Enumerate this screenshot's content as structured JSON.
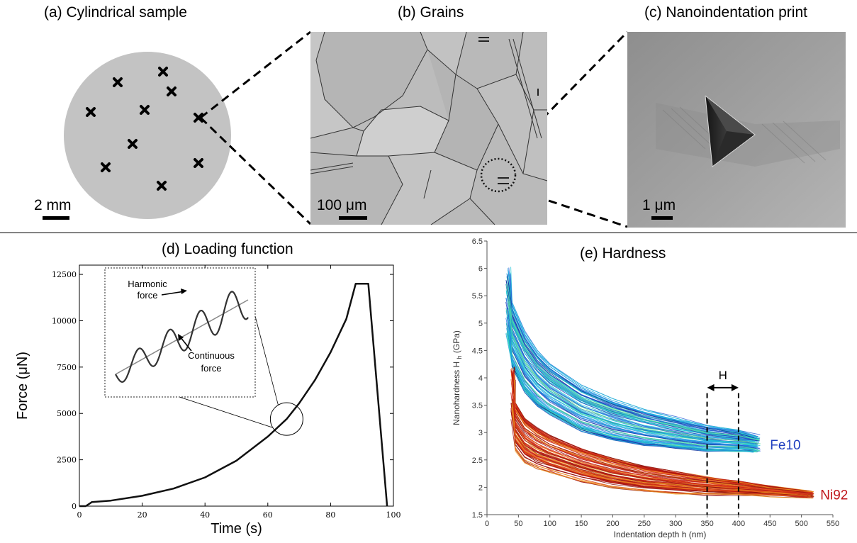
{
  "panels": {
    "a": {
      "title": "(a) Cylindrical sample",
      "scale": "2 mm"
    },
    "b": {
      "title": "(b) Grains",
      "scale": "100 μm"
    },
    "c": {
      "title": "(c) Nanoindentation print",
      "scale": "1 μm"
    },
    "d": {
      "title": "(d) Loading function"
    },
    "e": {
      "title": "(e) Hardness"
    }
  },
  "colors": {
    "sample": "#c3c3c3",
    "grains_bg": "#b9b9b9",
    "print_bg": "#9a9a9a",
    "fe10_label": "#1f3fbf",
    "ni92_label": "#c0161c"
  },
  "chart_data": [
    {
      "id": "loading-function",
      "type": "line",
      "title": "(d) Loading function",
      "xlabel": "Time (s)",
      "ylabel": "Force (μN)",
      "xlim": [
        0,
        100
      ],
      "ylim": [
        0,
        13000
      ],
      "x_ticks": [
        0,
        20,
        40,
        60,
        80,
        100
      ],
      "y_ticks": [
        0,
        2500,
        5000,
        7500,
        10000,
        12500
      ],
      "x": [
        0,
        2,
        4,
        10,
        20,
        30,
        40,
        50,
        60,
        66,
        70,
        75,
        80,
        85,
        88,
        92,
        98
      ],
      "y": [
        0,
        0,
        220,
        300,
        560,
        950,
        1550,
        2450,
        3750,
        4700,
        5550,
        6800,
        8300,
        10100,
        12000,
        12000,
        0
      ],
      "inset": {
        "annotations": [
          "Harmonic",
          "force",
          "Continuous",
          "force"
        ],
        "label_harmonic_1": "Harmonic",
        "label_harmonic_2": "force",
        "label_continuous_1": "Continuous",
        "label_continuous_2": "force",
        "oscillations": 4.3,
        "circle_center": [
          66,
          4700
        ]
      }
    },
    {
      "id": "hardness",
      "type": "line",
      "title": "(e) Hardness",
      "xlabel": "Indentation depth h (nm)",
      "ylabel": "Nanohardness H",
      "ylabel_sub": "h",
      "ylabel_unit": "(GPa)",
      "xlim": [
        0,
        550
      ],
      "ylim": [
        1.5,
        6.5
      ],
      "x_ticks": [
        0,
        50,
        100,
        150,
        200,
        250,
        300,
        350,
        400,
        450,
        500,
        550
      ],
      "y_ticks": [
        1.5,
        2,
        2.5,
        3,
        3.5,
        4,
        4.5,
        5,
        5.5,
        6,
        6.5
      ],
      "range_label": "H",
      "range": [
        350,
        400
      ],
      "series": [
        {
          "name": "Fe10",
          "x": [
            30,
            40,
            60,
            80,
            100,
            150,
            200,
            250,
            300,
            350,
            400,
            435
          ],
          "y": [
            5.4,
            4.8,
            4.3,
            4.0,
            3.8,
            3.45,
            3.25,
            3.1,
            3.0,
            2.9,
            2.85,
            2.8
          ]
        },
        {
          "name": "Ni92",
          "x": [
            38,
            45,
            60,
            80,
            100,
            150,
            200,
            250,
            300,
            350,
            400,
            450,
            520
          ],
          "y": [
            3.7,
            3.1,
            2.85,
            2.7,
            2.6,
            2.4,
            2.25,
            2.15,
            2.08,
            2.02,
            1.98,
            1.93,
            1.87
          ]
        }
      ]
    }
  ]
}
